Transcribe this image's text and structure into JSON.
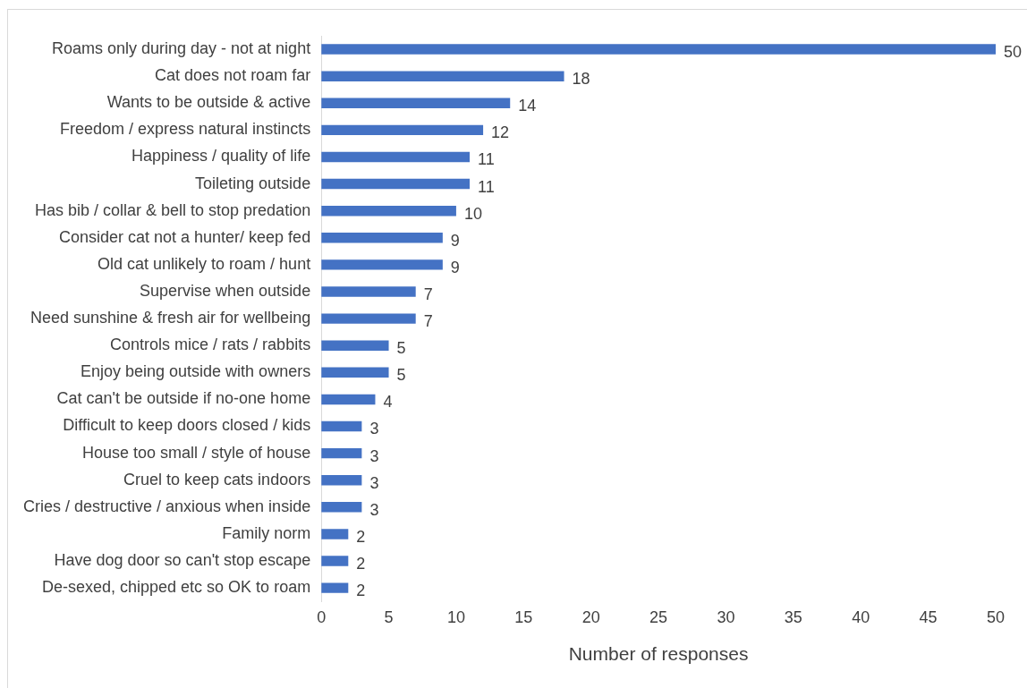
{
  "chart_data": {
    "type": "bar",
    "orientation": "horizontal",
    "xlabel": "Number of responses",
    "categories": [
      "Roams only during day - not at night",
      "Cat does not roam far",
      "Wants to be outside & active",
      "Freedom / express natural instincts",
      "Happiness / quality of life",
      "Toileting outside",
      "Has bib / collar & bell to stop predation",
      "Consider cat not a hunter/ keep fed",
      "Old cat unlikely to roam / hunt",
      "Supervise when outside",
      "Need sunshine & fresh air for wellbeing",
      "Controls mice / rats / rabbits",
      "Enjoy being outside with owners",
      "Cat can't be outside if no-one home",
      "Difficult to keep doors closed / kids",
      "House too small / style of house",
      "Cruel to keep cats indoors",
      "Cries / destructive / anxious when inside",
      "Family norm",
      "Have dog door so can't stop escape",
      "De-sexed, chipped etc so OK to roam"
    ],
    "values": [
      50,
      18,
      14,
      12,
      11,
      11,
      10,
      9,
      9,
      7,
      7,
      5,
      5,
      4,
      3,
      3,
      3,
      3,
      2,
      2,
      2
    ],
    "color": "#4472c4",
    "data_labels": true,
    "grid": false,
    "legend": false,
    "xlim": [
      0,
      50
    ],
    "xticks": [
      0,
      5,
      10,
      15,
      20,
      25,
      30,
      35,
      40,
      45,
      50
    ]
  }
}
